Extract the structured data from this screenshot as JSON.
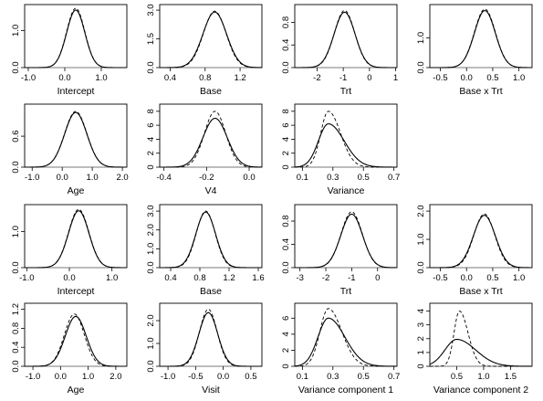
{
  "chart_data": [
    {
      "type": "line",
      "xlabel": "Intercept",
      "xticks": [
        "-1.0",
        "0.0",
        "1.0"
      ],
      "xtick_values": [
        -1,
        0,
        1
      ],
      "yticks": [
        "0.0",
        "1.0"
      ],
      "ytick_values": [
        0,
        1
      ],
      "xlim": [
        -1.1,
        1.7
      ],
      "ylim": [
        0,
        1.6
      ],
      "series": [
        {
          "style": "solid",
          "mean": 0.3,
          "sd": 0.25,
          "peak": 1.55
        },
        {
          "style": "dashed",
          "mean": 0.3,
          "sd": 0.25,
          "peak": 1.6
        }
      ]
    },
    {
      "type": "line",
      "xlabel": "Base",
      "xticks": [
        "0.4",
        "0.8",
        "1.2"
      ],
      "xtick_values": [
        0.4,
        0.8,
        1.2
      ],
      "yticks": [
        "0.0",
        "1.5",
        "3.0"
      ],
      "ytick_values": [
        0,
        1.5,
        3
      ],
      "xlim": [
        0.28,
        1.45
      ],
      "ylim": [
        0,
        3.1
      ],
      "series": [
        {
          "style": "solid",
          "mean": 0.91,
          "sd": 0.135,
          "peak": 2.9
        },
        {
          "style": "dashed",
          "mean": 0.91,
          "sd": 0.13,
          "peak": 2.95
        }
      ]
    },
    {
      "type": "line",
      "xlabel": "Trt",
      "xticks": [
        "-2",
        "-1",
        "0",
        "1"
      ],
      "xtick_values": [
        -2,
        -1,
        0,
        1
      ],
      "yticks": [
        "0.0",
        "0.4",
        "0.8"
      ],
      "ytick_values": [
        0,
        0.4,
        0.8
      ],
      "xlim": [
        -2.85,
        1.05
      ],
      "ylim": [
        0,
        1.05
      ],
      "series": [
        {
          "style": "solid",
          "mean": -0.95,
          "sd": 0.4,
          "peak": 0.98
        },
        {
          "style": "dashed",
          "mean": -0.95,
          "sd": 0.39,
          "peak": 1.01
        }
      ]
    },
    {
      "type": "line",
      "xlabel": "Base x Trt",
      "xticks": [
        "-0.5",
        "0.0",
        "0.5",
        "1.0"
      ],
      "xtick_values": [
        -0.5,
        0,
        0.5,
        1
      ],
      "yticks": [
        "0.0",
        "1.0"
      ],
      "ytick_values": [
        0,
        1
      ],
      "xlim": [
        -0.7,
        1.25
      ],
      "ylim": [
        0,
        2.0
      ],
      "series": [
        {
          "style": "solid",
          "mean": 0.35,
          "sd": 0.2,
          "peak": 1.92
        },
        {
          "style": "dashed",
          "mean": 0.35,
          "sd": 0.2,
          "peak": 1.97
        }
      ]
    },
    {
      "type": "line",
      "xlabel": "Age",
      "xticks": [
        "-1.0",
        "0.0",
        "1.0",
        "2.0"
      ],
      "xtick_values": [
        -1,
        0,
        1,
        2
      ],
      "yticks": [
        "0.0",
        "0.6"
      ],
      "ytick_values": [
        0,
        0.6
      ],
      "xlim": [
        -1.25,
        2.15
      ],
      "ylim": [
        0,
        1.15
      ],
      "series": [
        {
          "style": "solid",
          "mean": 0.45,
          "sd": 0.37,
          "peak": 1.06
        },
        {
          "style": "dashed",
          "mean": 0.45,
          "sd": 0.37,
          "peak": 1.08
        }
      ]
    },
    {
      "type": "line",
      "xlabel": "V4",
      "xticks": [
        "-0.4",
        "-0.2",
        "0.0"
      ],
      "xtick_values": [
        -0.4,
        -0.2,
        0
      ],
      "yticks": [
        "0",
        "2",
        "4",
        "6",
        "8"
      ],
      "ytick_values": [
        0,
        2,
        4,
        6,
        8
      ],
      "xlim": [
        -0.42,
        0.06
      ],
      "ylim": [
        0,
        8.5
      ],
      "series": [
        {
          "style": "solid",
          "mean": -0.16,
          "sd": 0.057,
          "peak": 7.0
        },
        {
          "style": "dashed",
          "mean": -0.16,
          "sd": 0.05,
          "peak": 8.0
        }
      ]
    },
    {
      "type": "line",
      "xlabel": "Variance",
      "xticks": [
        "0.1",
        "0.3",
        "0.5",
        "0.7"
      ],
      "xtick_values": [
        0.1,
        0.3,
        0.5,
        0.7
      ],
      "yticks": [
        "0",
        "2",
        "4",
        "6",
        "8"
      ],
      "ytick_values": [
        0,
        2,
        4,
        6,
        8
      ],
      "xlim": [
        0.05,
        0.72
      ],
      "ylim": [
        0,
        8.5
      ],
      "series": [
        {
          "style": "solid",
          "mean": 0.27,
          "sd": 0.065,
          "peak": 6.2,
          "skew": true
        },
        {
          "style": "dashed",
          "mean": 0.27,
          "sd": 0.05,
          "peak": 8.0,
          "skew": true
        }
      ]
    },
    null,
    {
      "type": "line",
      "xlabel": "Intercept",
      "xticks": [
        "-1.0",
        "0.0",
        "1.0"
      ],
      "xtick_values": [
        -1,
        0,
        1
      ],
      "yticks": [
        "0.0",
        "1.0"
      ],
      "ytick_values": [
        0,
        1
      ],
      "xlim": [
        -1.05,
        1.35
      ],
      "ylim": [
        0,
        1.65
      ],
      "series": [
        {
          "style": "solid",
          "mean": 0.22,
          "sd": 0.24,
          "peak": 1.58
        },
        {
          "style": "dashed",
          "mean": 0.22,
          "sd": 0.24,
          "peak": 1.62
        }
      ]
    },
    {
      "type": "line",
      "xlabel": "Base",
      "xticks": [
        "0.4",
        "0.8",
        "1.2",
        "1.6"
      ],
      "xtick_values": [
        0.4,
        0.8,
        1.2,
        1.6
      ],
      "yticks": [
        "0.0",
        "1.0",
        "2.0",
        "3.0"
      ],
      "ytick_values": [
        0,
        1,
        2,
        3
      ],
      "xlim": [
        0.25,
        1.65
      ],
      "ylim": [
        0,
        3.15
      ],
      "series": [
        {
          "style": "solid",
          "mean": 0.88,
          "sd": 0.135,
          "peak": 2.95
        },
        {
          "style": "dashed",
          "mean": 0.88,
          "sd": 0.13,
          "peak": 3.0
        }
      ]
    },
    {
      "type": "line",
      "xlabel": "Trt",
      "xticks": [
        "-3",
        "-2",
        "-1",
        "0"
      ],
      "xtick_values": [
        -3,
        -2,
        -1,
        0
      ],
      "yticks": [
        "0.0",
        "0.4",
        "0.8"
      ],
      "ytick_values": [
        0,
        0.4,
        0.8
      ],
      "xlim": [
        -3.2,
        0.75
      ],
      "ylim": [
        0,
        1.02
      ],
      "series": [
        {
          "style": "solid",
          "mean": -1.0,
          "sd": 0.42,
          "peak": 0.92
        },
        {
          "style": "dashed",
          "mean": -1.0,
          "sd": 0.41,
          "peak": 0.96
        }
      ]
    },
    {
      "type": "line",
      "xlabel": "Base x Trt",
      "xticks": [
        "-0.5",
        "0.0",
        "0.5",
        "1.0"
      ],
      "xtick_values": [
        -0.5,
        0,
        0.5,
        1
      ],
      "yticks": [
        "0.0",
        "1.0",
        "2.0"
      ],
      "ytick_values": [
        0,
        1,
        2
      ],
      "xlim": [
        -0.7,
        1.25
      ],
      "ylim": [
        0,
        2.1
      ],
      "series": [
        {
          "style": "solid",
          "mean": 0.34,
          "sd": 0.21,
          "peak": 1.85
        },
        {
          "style": "dashed",
          "mean": 0.34,
          "sd": 0.2,
          "peak": 1.9
        }
      ]
    },
    {
      "type": "line",
      "xlabel": "Age",
      "xticks": [
        "-1.0",
        "0.0",
        "1.0",
        "2.0"
      ],
      "xtick_values": [
        -1,
        0,
        1,
        2
      ],
      "yticks": [
        "0.0",
        "0.4",
        "0.8",
        "1.2"
      ],
      "ytick_values": [
        0,
        0.4,
        0.8,
        1.2
      ],
      "xlim": [
        -1.3,
        2.4
      ],
      "ylim": [
        0,
        1.25
      ],
      "series": [
        {
          "style": "solid",
          "mean": 0.55,
          "sd": 0.38,
          "peak": 1.05
        },
        {
          "style": "dashed",
          "mean": 0.5,
          "sd": 0.36,
          "peak": 1.1
        }
      ]
    },
    {
      "type": "line",
      "xlabel": "Visit",
      "xticks": [
        "-1.0",
        "-0.5",
        "0.0",
        "0.5"
      ],
      "xtick_values": [
        -1,
        -0.5,
        0,
        0.5
      ],
      "yticks": [
        "0.0",
        "1.0",
        "2.0"
      ],
      "ytick_values": [
        0,
        1,
        2
      ],
      "xlim": [
        -1.15,
        0.7
      ],
      "ylim": [
        0,
        2.6
      ],
      "series": [
        {
          "style": "solid",
          "mean": -0.27,
          "sd": 0.17,
          "peak": 2.35
        },
        {
          "style": "dashed",
          "mean": -0.27,
          "sd": 0.16,
          "peak": 2.5
        }
      ]
    },
    {
      "type": "line",
      "xlabel": "Variance component 1",
      "xticks": [
        "0.1",
        "0.3",
        "0.5",
        "0.7"
      ],
      "xtick_values": [
        0.1,
        0.3,
        0.5,
        0.7
      ],
      "yticks": [
        "0",
        "2",
        "4",
        "6"
      ],
      "ytick_values": [
        0,
        2,
        4,
        6
      ],
      "xlim": [
        0.05,
        0.72
      ],
      "ylim": [
        0,
        7.4
      ],
      "series": [
        {
          "style": "solid",
          "mean": 0.27,
          "sd": 0.068,
          "peak": 6.0,
          "skew": true
        },
        {
          "style": "dashed",
          "mean": 0.27,
          "sd": 0.055,
          "peak": 7.2,
          "skew": true
        }
      ]
    },
    {
      "type": "line",
      "xlabel": "Variance component 2",
      "xticks": [
        "0.5",
        "1.0",
        "1.5"
      ],
      "xtick_values": [
        0.5,
        1,
        1.5
      ],
      "yticks": [
        "0",
        "1",
        "2",
        "3",
        "4"
      ],
      "ytick_values": [
        0,
        1,
        2,
        3,
        4
      ],
      "xlim": [
        0.0,
        1.9
      ],
      "ylim": [
        0,
        4.3
      ],
      "series": [
        {
          "style": "solid",
          "mean": 0.5,
          "sd": 0.22,
          "peak": 1.95,
          "skew": true
        },
        {
          "style": "dashed",
          "mean": 0.55,
          "sd": 0.1,
          "peak": 4.0,
          "skew": true
        }
      ]
    }
  ]
}
